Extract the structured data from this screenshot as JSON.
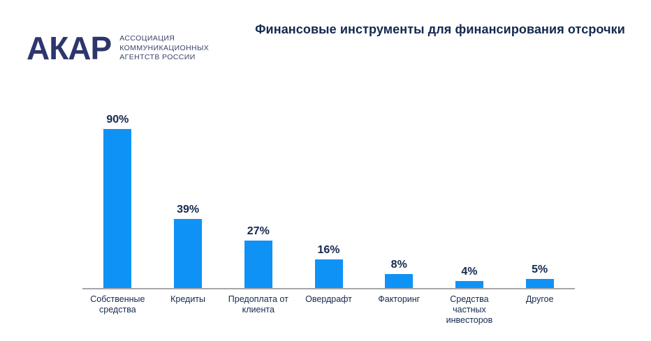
{
  "logo": {
    "acronym": "АКАР",
    "org_lines": [
      "АССОЦИАЦИЯ",
      "КОММУНИКАЦИОННЫХ",
      "АГЕНТСТВ РОССИИ"
    ]
  },
  "header": {
    "title": "Финансовые инструменты для финансирования отсрочки"
  },
  "colors": {
    "bar_blue": "#0e92f6",
    "text_navy": "#14294f",
    "logo_navy": "#2d366c",
    "axis_gray": "#a7a7a7"
  },
  "chart_data": {
    "type": "bar",
    "title": "Финансовые инструменты для финансирования отсрочки",
    "categories": [
      "Собственные средства",
      "Кредиты",
      "Предоплата от клиента",
      "Овердрафт",
      "Факторинг",
      "Средства частных инвесторов",
      "Другое"
    ],
    "values": [
      90,
      39,
      27,
      16,
      8,
      4,
      5
    ],
    "value_labels": [
      "90%",
      "39%",
      "27%",
      "16%",
      "8%",
      "4%",
      "5%"
    ],
    "xlabel": "",
    "ylabel": "",
    "ylim": [
      0,
      90
    ],
    "grid": false,
    "legend": null,
    "bar_color": "#0e92f6",
    "value_suffix": "%"
  }
}
